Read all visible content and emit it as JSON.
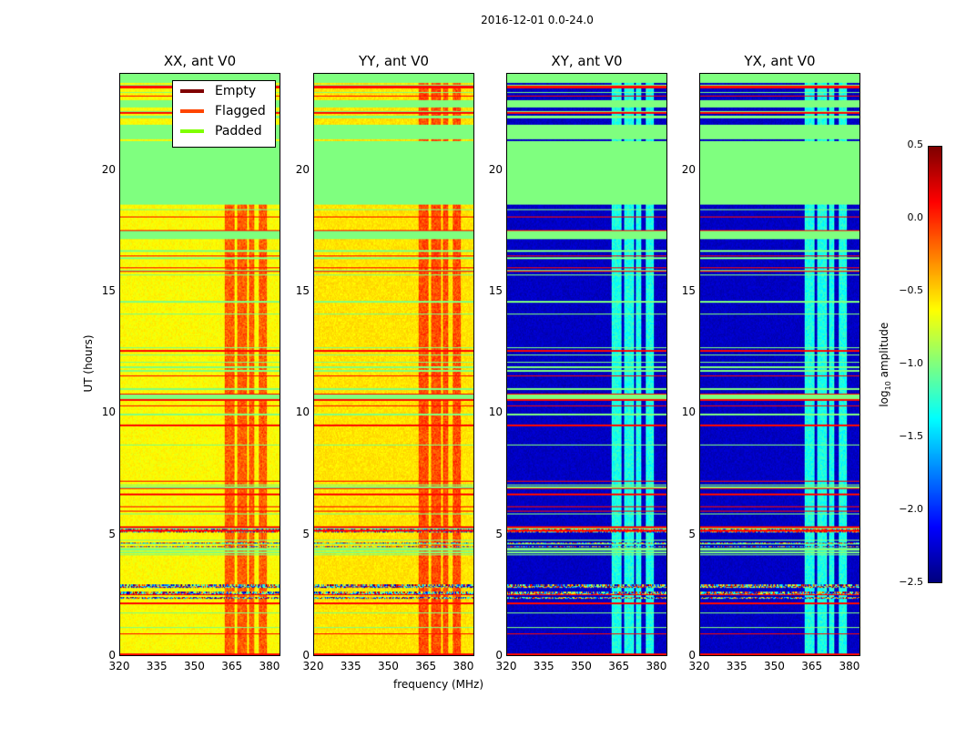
{
  "chart_data": {
    "type": "heatmap",
    "title": "2016-12-01 0.0-24.0",
    "xlabel": "frequency (MHz)",
    "ylabel": "UT (hours)",
    "xlim": [
      320,
      384.4
    ],
    "ylim": [
      0,
      24
    ],
    "xticks": [
      "320",
      "335",
      "350",
      "365",
      "380"
    ],
    "yticks": [
      "0",
      "5",
      "10",
      "15",
      "20"
    ],
    "panels": [
      {
        "title": "XX, ant V0",
        "base": -0.62,
        "band_level": -0.15
      },
      {
        "title": "YY, ant V0",
        "base": -0.55,
        "band_level": -0.1
      },
      {
        "title": "XY, ant V0",
        "base": -2.3,
        "band_level": -1.3
      },
      {
        "title": "YX, ant V0",
        "base": -2.3,
        "band_level": -1.3
      }
    ],
    "bright_band_mhz": [
      [
        362,
        366
      ],
      [
        367,
        371
      ],
      [
        372,
        374
      ],
      [
        376,
        379
      ]
    ],
    "padded_ut_ranges": [
      [
        17.2,
        17.5
      ],
      [
        18.6,
        21.2
      ],
      [
        21.3,
        21.9
      ],
      [
        22.6,
        22.9
      ],
      [
        23.6,
        24.0
      ]
    ],
    "legend": {
      "placement": "upper-right of first panel",
      "entries": [
        {
          "label": "Empty",
          "color": "#800000"
        },
        {
          "label": "Flagged",
          "color": "#ff4500"
        },
        {
          "label": "Padded",
          "color": "#7fff00"
        }
      ]
    },
    "colorbar": {
      "label_prefix": "log",
      "label_sub": "10",
      "label_suffix": " amplitude",
      "range": [
        -2.5,
        0.5
      ],
      "ticks": [
        "0.5",
        "0.0",
        "−0.5",
        "−1.0",
        "−1.5",
        "−2.0",
        "−2.5"
      ],
      "tick_values": [
        0.5,
        0.0,
        -0.5,
        -1.0,
        -1.5,
        -2.0,
        -2.5
      ],
      "colormap": "jet"
    }
  }
}
